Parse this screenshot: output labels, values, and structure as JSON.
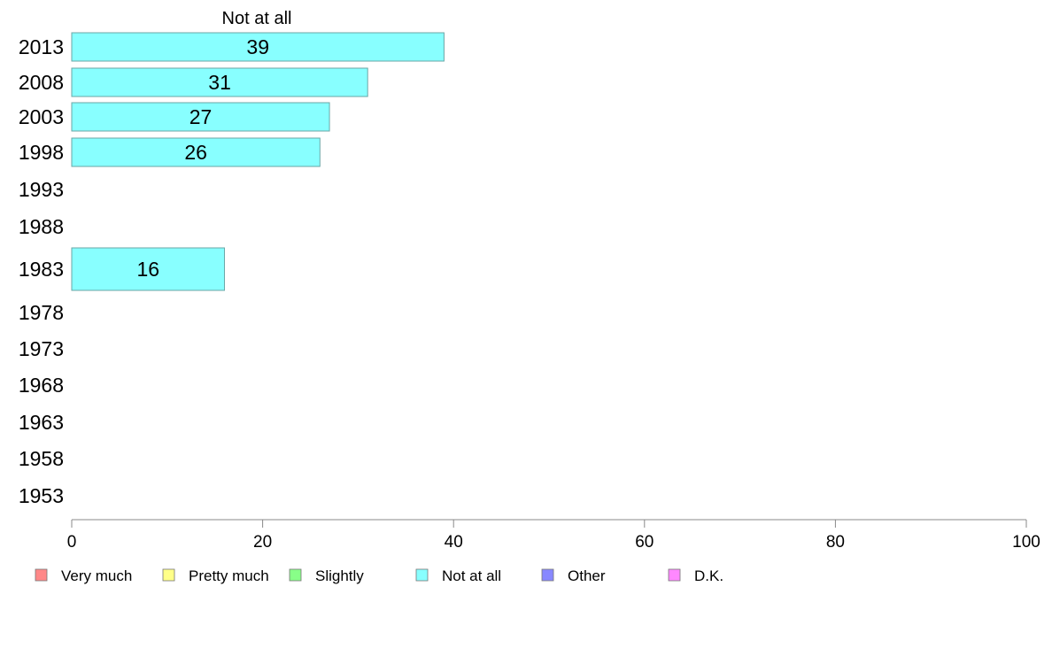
{
  "chart_data": {
    "type": "bar",
    "orientation": "horizontal",
    "title": "Not at all",
    "categories": [
      "2013",
      "2008",
      "2003",
      "1998",
      "1993",
      "1988",
      "1983",
      "1978",
      "1973",
      "1968",
      "1963",
      "1958",
      "1953"
    ],
    "series": [
      {
        "name": "Not at all",
        "values": [
          39,
          31,
          27,
          26,
          null,
          null,
          16,
          null,
          null,
          null,
          null,
          null,
          null
        ]
      }
    ],
    "xlim": [
      0,
      100
    ],
    "xticks": [
      "0",
      "20",
      "40",
      "60",
      "80",
      "100"
    ],
    "grid": false,
    "legend_position": "bottom",
    "legend": [
      {
        "label": "Very much",
        "color": "#ff8888"
      },
      {
        "label": "Pretty much",
        "color": "#ffff88"
      },
      {
        "label": "Slightly",
        "color": "#88ff88"
      },
      {
        "label": "Not at all",
        "color": "#88ffff"
      },
      {
        "label": "Other",
        "color": "#8888ff"
      },
      {
        "label": "D.K.",
        "color": "#ff88ff"
      }
    ],
    "bar_color": "#88ffff",
    "bar_stroke": "#6aa6a6",
    "axis_color": "#888888"
  }
}
